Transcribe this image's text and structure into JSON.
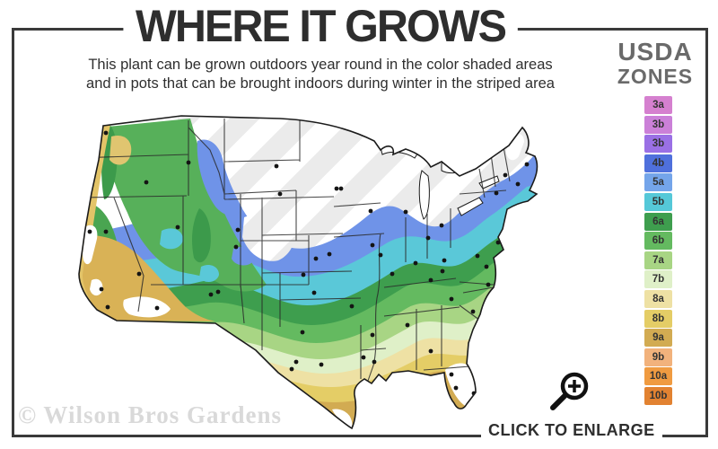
{
  "header": {
    "title": "WHERE IT GROWS",
    "subtitle_line1": "This plant can be grown outdoors year round in the color shaded areas",
    "subtitle_line2": "and in pots that can be brought indoors during winter in the striped area"
  },
  "legend": {
    "title_line1": "USDA",
    "title_line2": "ZONES",
    "zones": [
      {
        "label": "3a",
        "color": "#d580cf"
      },
      {
        "label": "3b",
        "color": "#cb80d8"
      },
      {
        "label": "3b",
        "color": "#9a70e5"
      },
      {
        "label": "4b",
        "color": "#4f70dc"
      },
      {
        "label": "5a",
        "color": "#74a5ea"
      },
      {
        "label": "5b",
        "color": "#55c8d8"
      },
      {
        "label": "6a",
        "color": "#3e9e4e"
      },
      {
        "label": "6b",
        "color": "#64ba60"
      },
      {
        "label": "7a",
        "color": "#a8d584"
      },
      {
        "label": "7b",
        "color": "#dff0c8"
      },
      {
        "label": "8a",
        "color": "#eee1a4"
      },
      {
        "label": "8b",
        "color": "#e4cd66"
      },
      {
        "label": "9a",
        "color": "#d2ab52"
      },
      {
        "label": "9b",
        "color": "#f2b27c"
      },
      {
        "label": "10a",
        "color": "#f09b41"
      },
      {
        "label": "10b",
        "color": "#e28231"
      }
    ]
  },
  "map": {
    "watermark": "© Wilson Bros Gardens"
  },
  "cta": {
    "label": "CLICK TO ENLARGE"
  }
}
